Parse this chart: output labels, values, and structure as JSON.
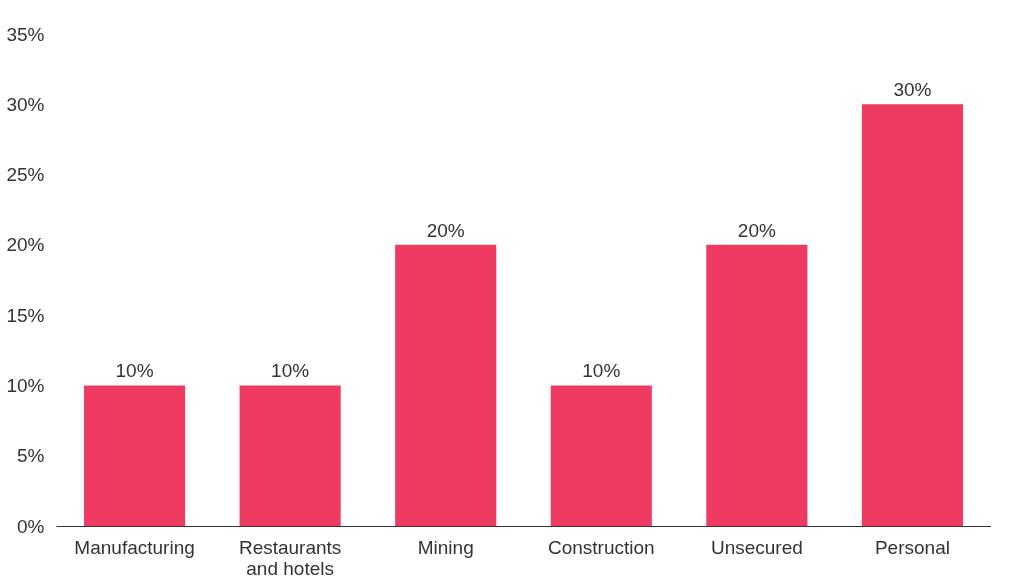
{
  "chart_data": {
    "type": "bar",
    "categories": [
      "Manufacturing",
      "Restaurants and hotels",
      "Mining",
      "Construction",
      "Unsecured",
      "Personal"
    ],
    "values": [
      10,
      10,
      20,
      10,
      20,
      30
    ],
    "color": "#ef3a62",
    "value_labels": [
      "10%",
      "10%",
      "20%",
      "10%",
      "20%",
      "30%"
    ],
    "ylim": [
      0,
      35
    ],
    "yticks": [
      {
        "value": 0,
        "label": "0%"
      },
      {
        "value": 5,
        "label": "5%"
      },
      {
        "value": 10,
        "label": "10%"
      },
      {
        "value": 15,
        "label": "15%"
      },
      {
        "value": 20,
        "label": "20%"
      },
      {
        "value": 25,
        "label": "25%"
      },
      {
        "value": 30,
        "label": "30%"
      },
      {
        "value": 35,
        "label": "35%"
      }
    ],
    "grid": false
  }
}
